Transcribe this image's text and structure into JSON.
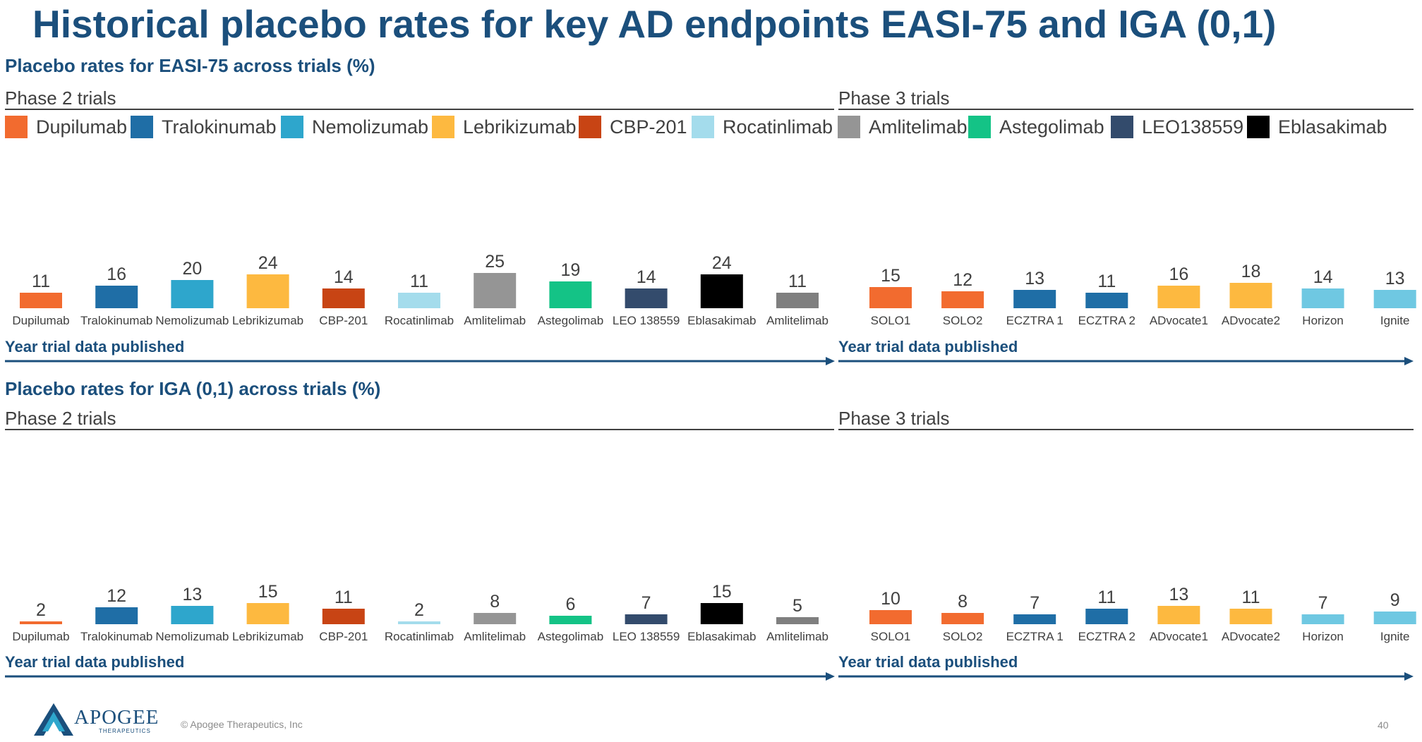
{
  "slide": {
    "title": "Historical placebo rates for key AD endpoints EASI-75 and IGA (0,1)",
    "company_name": "APOGEE",
    "company_sub": "THERAPEUTICS",
    "copyright": "© Apogee Therapeutics, Inc",
    "page_number": "40"
  },
  "phase_labels": {
    "phase2": "Phase 2 trials",
    "phase3": "Phase 3 trials"
  },
  "year_label": "Year trial data published",
  "legend": [
    {
      "name": "Dupilumab",
      "color": "#f26b2f"
    },
    {
      "name": "Tralokinumab",
      "color": "#1f6ea6"
    },
    {
      "name": "Nemolizumab",
      "color": "#2ea6cc"
    },
    {
      "name": "Lebrikizumab",
      "color": "#fdb940"
    },
    {
      "name": "CBP-201",
      "color": "#c84414"
    },
    {
      "name": "Rocatinlimab",
      "color": "#a4dcec"
    },
    {
      "name": "Amlitelimab",
      "color": "#959595"
    },
    {
      "name": "Astegolimab",
      "color": "#14c386"
    },
    {
      "name": "LEO138559",
      "color": "#334b6c"
    },
    {
      "name": "Eblasakimab",
      "color": "#000000"
    }
  ],
  "chart_data": [
    {
      "type": "bar",
      "title": "Placebo rates for EASI-75 across trials (%)",
      "phase2": {
        "categories": [
          "Dupilumab",
          "Tralokinumab",
          "Nemolizumab",
          "Lebrikizumab",
          "CBP-201",
          "Rocatinlimab",
          "Amlitelimab",
          "Astegolimab",
          "LEO 138559",
          "Eblasakimab",
          "Amlitelimab"
        ],
        "values": [
          11,
          16,
          20,
          24,
          14,
          11,
          25,
          19,
          14,
          24,
          11
        ],
        "colors": [
          "#f26b2f",
          "#1f6ea6",
          "#2ea6cc",
          "#fdb940",
          "#c84414",
          "#a4dcec",
          "#959595",
          "#14c386",
          "#334b6c",
          "#000000",
          "#7f7f7f"
        ]
      },
      "phase3": {
        "categories": [
          "SOLO1",
          "SOLO2",
          "ECZTRA 1",
          "ECZTRA 2",
          "ADvocate1",
          "ADvocate2",
          "Horizon",
          "Ignite"
        ],
        "values": [
          15,
          12,
          13,
          11,
          16,
          18,
          14,
          13
        ],
        "colors": [
          "#f26b2f",
          "#f26b2f",
          "#1f6ea6",
          "#1f6ea6",
          "#fdb940",
          "#fdb940",
          "#6fc8e2",
          "#6fc8e2"
        ]
      }
    },
    {
      "type": "bar",
      "title": "Placebo rates for IGA (0,1) across trials (%)",
      "phase2": {
        "categories": [
          "Dupilumab",
          "Tralokinumab",
          "Nemolizumab",
          "Lebrikizumab",
          "CBP-201",
          "Rocatinlimab",
          "Amlitelimab",
          "Astegolimab",
          "LEO 138559",
          "Eblasakimab",
          "Amlitelimab"
        ],
        "values": [
          2,
          12,
          13,
          15,
          11,
          2,
          8,
          6,
          7,
          15,
          5
        ],
        "colors": [
          "#f26b2f",
          "#1f6ea6",
          "#2ea6cc",
          "#fdb940",
          "#c84414",
          "#a4dcec",
          "#959595",
          "#14c386",
          "#334b6c",
          "#000000",
          "#7f7f7f"
        ]
      },
      "phase3": {
        "categories": [
          "SOLO1",
          "SOLO2",
          "ECZTRA 1",
          "ECZTRA 2",
          "ADvocate1",
          "ADvocate2",
          "Horizon",
          "Ignite"
        ],
        "values": [
          10,
          8,
          7,
          11,
          13,
          11,
          7,
          9
        ],
        "colors": [
          "#f26b2f",
          "#f26b2f",
          "#1f6ea6",
          "#1f6ea6",
          "#fdb940",
          "#fdb940",
          "#6fc8e2",
          "#6fc8e2"
        ]
      }
    }
  ]
}
